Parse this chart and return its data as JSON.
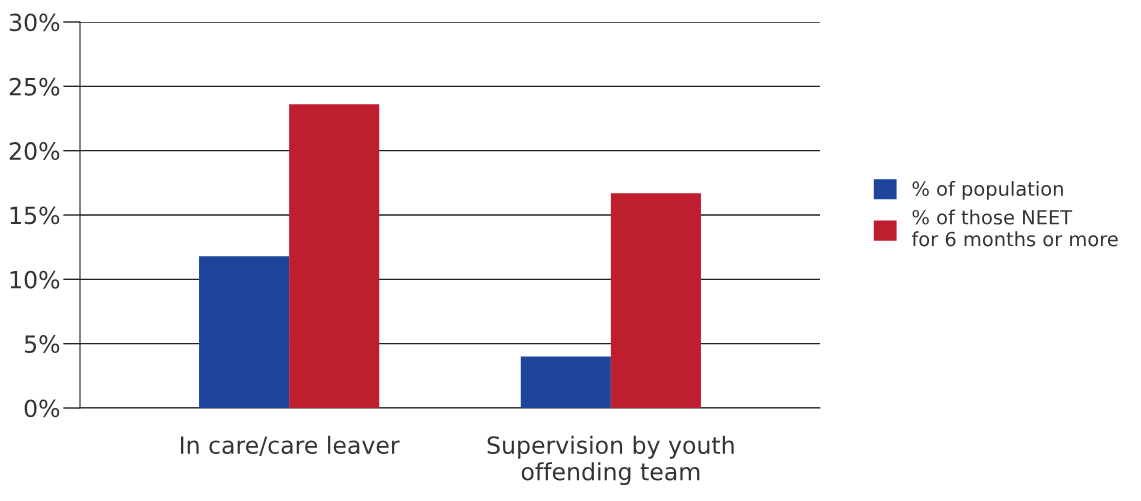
{
  "chart_data": {
    "type": "bar",
    "categories": [
      "In care/care leaver",
      "Supervision by youth\noffending team"
    ],
    "series": [
      {
        "name": "% of population",
        "color": "#1f449c",
        "values": [
          11.8,
          4.0
        ]
      },
      {
        "name": "% of those NEET\nfor 6 months or more",
        "color": "#be1e2e",
        "values": [
          23.6,
          16.7
        ]
      }
    ],
    "ylim": [
      0,
      30
    ],
    "yticks": [
      {
        "value": 0,
        "label": "0%"
      },
      {
        "value": 5,
        "label": "5%"
      },
      {
        "value": 10,
        "label": "10%"
      },
      {
        "value": 15,
        "label": "15%"
      },
      {
        "value": 20,
        "label": "20%"
      },
      {
        "value": 25,
        "label": "25%"
      },
      {
        "value": 30,
        "label": "30%"
      }
    ],
    "grid": "y",
    "legend": "right"
  }
}
